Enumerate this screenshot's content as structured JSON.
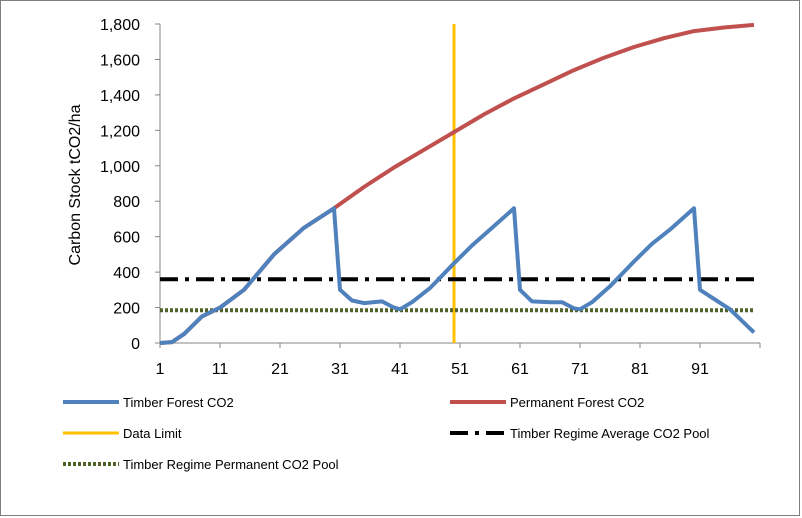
{
  "chart_data": {
    "type": "line",
    "title": "",
    "xlabel": "",
    "ylabel": "Carbon Stock tCO2/ha",
    "ylim": [
      0,
      1800
    ],
    "xlim": [
      1,
      101
    ],
    "x_ticks": [
      "1",
      "11",
      "21",
      "31",
      "41",
      "51",
      "61",
      "71",
      "81",
      "91"
    ],
    "y_ticks": [
      "0",
      "200",
      "400",
      "600",
      "800",
      "1,000",
      "1,200",
      "1,400",
      "1,600",
      "1,800"
    ],
    "grid": false,
    "legend_position": "bottom",
    "series": [
      {
        "name": "Timber Forest CO2",
        "color": "#4f81bd",
        "style": "solid",
        "x": [
          1,
          3,
          5,
          8,
          11,
          15,
          20,
          25,
          30,
          31,
          33,
          35,
          38,
          40,
          41,
          43,
          46,
          50,
          53,
          56,
          60,
          61,
          63,
          66,
          68,
          70,
          71,
          73,
          76,
          80,
          83,
          86,
          90,
          91,
          96,
          100
        ],
        "y": [
          0,
          5,
          50,
          150,
          200,
          300,
          500,
          650,
          760,
          300,
          240,
          225,
          235,
          200,
          190,
          230,
          310,
          450,
          550,
          640,
          760,
          300,
          235,
          230,
          230,
          195,
          190,
          230,
          320,
          460,
          560,
          640,
          760,
          300,
          190,
          60
        ]
      },
      {
        "name": "Permanent Forest CO2",
        "color": "#c0504d",
        "style": "solid",
        "x": [
          1,
          3,
          5,
          8,
          11,
          15,
          20,
          25,
          30,
          35,
          40,
          45,
          50,
          55,
          60,
          65,
          70,
          75,
          80,
          85,
          90,
          95,
          100
        ],
        "y": [
          0,
          5,
          50,
          150,
          200,
          300,
          500,
          650,
          760,
          880,
          990,
          1090,
          1190,
          1290,
          1380,
          1460,
          1540,
          1610,
          1670,
          1720,
          1760,
          1780,
          1795
        ]
      },
      {
        "name": "Data Limit",
        "color": "#ffc000",
        "style": "vertical",
        "x": [
          50,
          50
        ],
        "y": [
          0,
          1800
        ]
      },
      {
        "name": "Timber Regime Average CO2 Pool",
        "color": "#000000",
        "style": "dashdot",
        "x": [
          1,
          100
        ],
        "y": [
          360,
          360
        ]
      },
      {
        "name": "Timber Regime Permanent CO2 Pool",
        "color": "#4f6228",
        "style": "dotted",
        "x": [
          1,
          100
        ],
        "y": [
          185,
          185
        ]
      }
    ]
  }
}
